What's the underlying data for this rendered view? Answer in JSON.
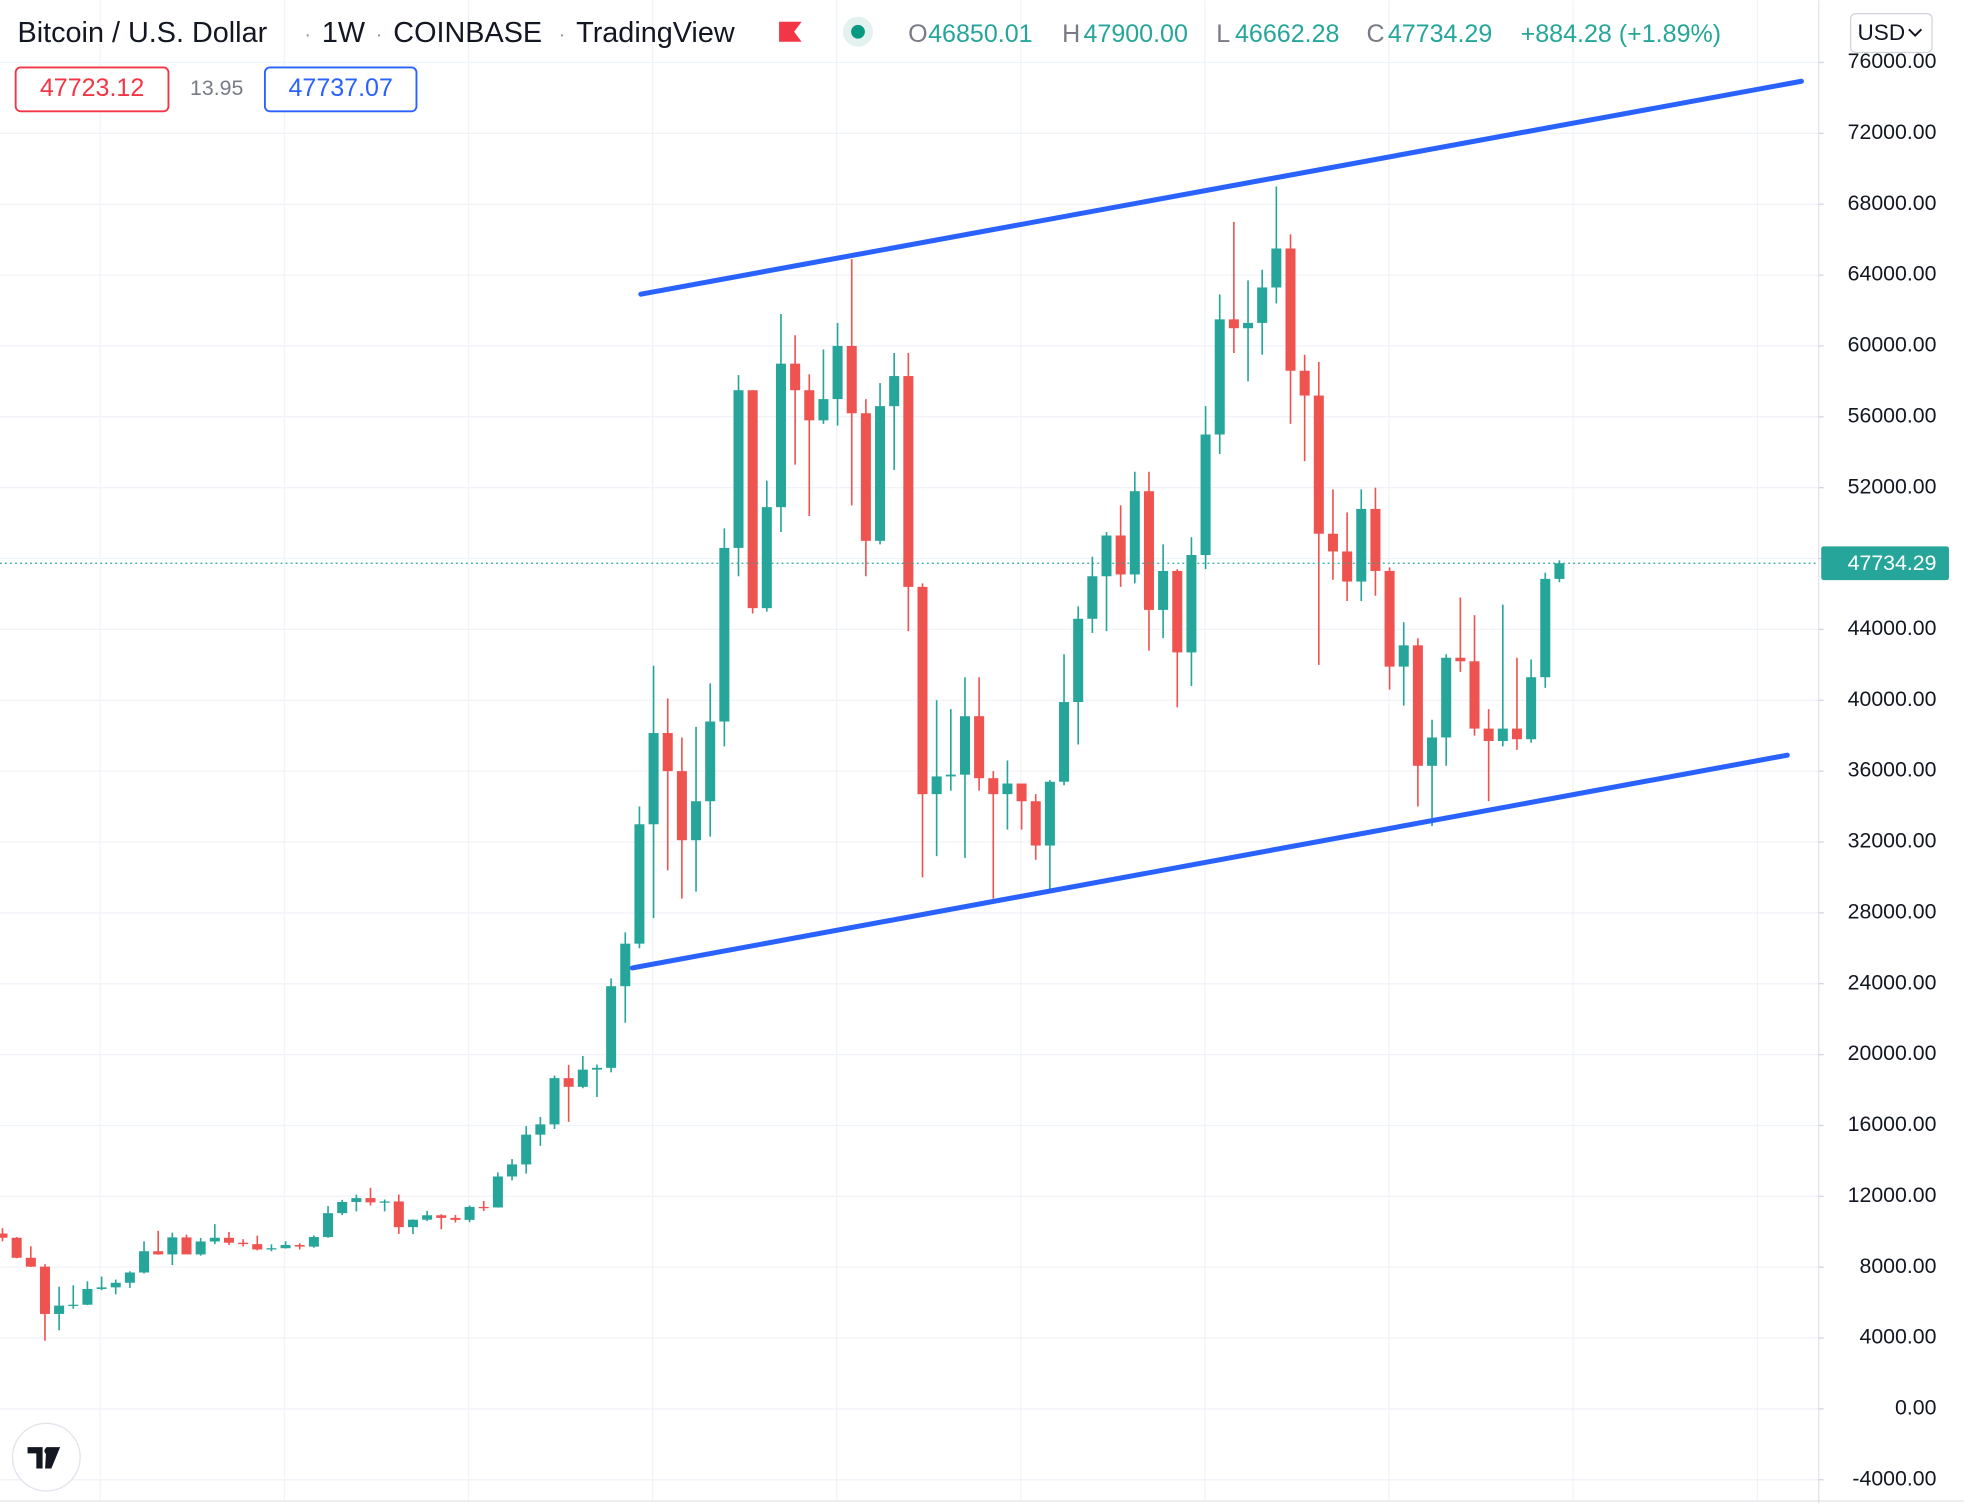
{
  "header": {
    "symbol": "Bitcoin / U.S. Dollar",
    "interval": "1W",
    "exchange": "COINBASE",
    "platform": "TradingView",
    "ohlc": [
      {
        "label": "O",
        "value": "46850.01"
      },
      {
        "label": "H",
        "value": "47900.00"
      },
      {
        "label": "L",
        "value": "46662.28"
      },
      {
        "label": "C",
        "value": "47734.29"
      }
    ],
    "change": "+884.28 (+1.89%)"
  },
  "order_panel": {
    "sell": "47723.12",
    "spread": "13.95",
    "buy": "47737.07"
  },
  "currency": "USD",
  "chart_data": {
    "type": "candlestick",
    "up_color": "#26a69a",
    "down_color": "#ef5350",
    "grid": true,
    "open": [
      9900,
      9660,
      8530,
      8030,
      5360,
      5830,
      5880,
      6770,
      6860,
      7120,
      7700,
      8900,
      8720,
      9680,
      8720,
      9450,
      9660,
      9380,
      9300,
      9000,
      9070,
      9250,
      9160,
      9700,
      11050,
      11680,
      11900,
      11660,
      11710,
      10260,
      10680,
      10930,
      10780,
      10670,
      11400,
      11370,
      13120,
      13800,
      15480,
      16060,
      18670,
      18180,
      19150,
      19250,
      23860,
      26260,
      33000,
      38150,
      36000,
      32100,
      34300,
      38800,
      48600,
      57500,
      45200,
      50900,
      59000,
      57500,
      55800,
      57000,
      60000,
      56200,
      49000,
      56600,
      58300,
      46400,
      34700,
      35700,
      35800,
      39100,
      35600,
      34700,
      35300,
      34300,
      31800,
      35400,
      39900,
      44600,
      47000,
      49300,
      47100,
      51800,
      45100,
      47300,
      42700,
      48200,
      55000,
      61500,
      61000,
      61300,
      63300,
      65500,
      58600,
      57200,
      49400,
      48400,
      46700,
      50800,
      47300,
      41900,
      43100,
      36300,
      37900,
      42400,
      42200,
      38400,
      37700,
      38400,
      37800,
      41300,
      46850.01
    ],
    "high": [
      10200,
      9700,
      9180,
      8170,
      6900,
      6980,
      7200,
      7470,
      7300,
      7770,
      9460,
      10050,
      9950,
      9840,
      9650,
      10430,
      9990,
      9580,
      9780,
      9290,
      9470,
      9350,
      9790,
      11450,
      11800,
      12090,
      12480,
      11820,
      12100,
      10700,
      11180,
      10990,
      10950,
      11480,
      11740,
      13350,
      14100,
      15960,
      16480,
      18820,
      19420,
      19920,
      19440,
      24300,
      26900,
      34000,
      41950,
      40100,
      37900,
      38500,
      40950,
      49700,
      58350,
      57500,
      52400,
      61800,
      60600,
      58400,
      59800,
      61300,
      64900,
      57000,
      57900,
      59600,
      59600,
      46600,
      40000,
      39500,
      41300,
      41300,
      36000,
      36600,
      35300,
      34700,
      35500,
      42600,
      45300,
      48100,
      49500,
      51000,
      52900,
      52900,
      48800,
      47400,
      49200,
      56600,
      62900,
      67000,
      63700,
      64300,
      69000,
      66300,
      59500,
      59100,
      51900,
      50600,
      51900,
      52000,
      47500,
      44400,
      43500,
      38900,
      42600,
      45800,
      44800,
      39500,
      45400,
      42400,
      42300,
      47200,
      47900
    ],
    "low": [
      9460,
      8500,
      8010,
      3850,
      4440,
      5650,
      5860,
      6700,
      6470,
      6830,
      7640,
      8700,
      8120,
      8800,
      8650,
      9300,
      9250,
      9170,
      8950,
      8900,
      9050,
      9000,
      9100,
      9660,
      10940,
      11150,
      11480,
      11150,
      9880,
      9870,
      10600,
      10140,
      10520,
      10540,
      11170,
      11360,
      12900,
      13280,
      14850,
      15800,
      16200,
      18100,
      17600,
      19000,
      21800,
      26000,
      27700,
      30400,
      28800,
      29200,
      32300,
      37400,
      47000,
      44900,
      45000,
      49500,
      53300,
      50400,
      55600,
      55500,
      51000,
      47000,
      48800,
      53000,
      43900,
      30000,
      31200,
      34900,
      31100,
      34900,
      28800,
      32700,
      32700,
      31000,
      29300,
      35200,
      37500,
      43800,
      43900,
      46400,
      46600,
      42800,
      43500,
      39600,
      40800,
      47400,
      53900,
      59600,
      58000,
      59500,
      62400,
      55600,
      53500,
      42000,
      46800,
      45600,
      45600,
      45900,
      40600,
      39700,
      34000,
      32900,
      36300,
      41600,
      38000,
      34300,
      37400,
      37200,
      37600,
      40700,
      46662.28
    ],
    "close": [
      9660,
      8530,
      8030,
      5360,
      5830,
      5880,
      6770,
      6860,
      7120,
      7700,
      8900,
      8720,
      9680,
      8720,
      9450,
      9660,
      9380,
      9300,
      9000,
      9070,
      9250,
      9160,
      9700,
      11050,
      11680,
      11900,
      11660,
      11710,
      10260,
      10680,
      10930,
      10780,
      10670,
      11400,
      11370,
      13120,
      13800,
      15480,
      16060,
      18670,
      18180,
      19150,
      19250,
      23860,
      26260,
      33000,
      38150,
      36000,
      32100,
      34300,
      38800,
      48600,
      57500,
      45200,
      50900,
      59000,
      57500,
      55800,
      57000,
      60000,
      56200,
      49000,
      56600,
      58300,
      46400,
      34700,
      35700,
      35800,
      39100,
      35600,
      34700,
      35300,
      34300,
      31800,
      35400,
      39900,
      44600,
      47000,
      49300,
      47100,
      51800,
      45100,
      47300,
      42700,
      48200,
      55000,
      61500,
      61000,
      61300,
      63300,
      65500,
      58600,
      57200,
      49400,
      48400,
      46700,
      50800,
      47300,
      41900,
      43100,
      36300,
      37900,
      42400,
      42200,
      38400,
      37700,
      38400,
      37800,
      41300,
      46850.01,
      47734.29
    ],
    "ylim": [
      -5200,
      79500
    ],
    "yticks": [
      {
        "value": -4000,
        "label": "-4000.00"
      },
      {
        "value": 0,
        "label": "0.00"
      },
      {
        "value": 4000,
        "label": "4000.00"
      },
      {
        "value": 8000,
        "label": "8000.00"
      },
      {
        "value": 12000,
        "label": "12000.00"
      },
      {
        "value": 16000,
        "label": "16000.00"
      },
      {
        "value": 20000,
        "label": "20000.00"
      },
      {
        "value": 24000,
        "label": "24000.00"
      },
      {
        "value": 28000,
        "label": "28000.00"
      },
      {
        "value": 32000,
        "label": "32000.00"
      },
      {
        "value": 36000,
        "label": "36000.00"
      },
      {
        "value": 40000,
        "label": "40000.00"
      },
      {
        "value": 44000,
        "label": "44000.00"
      },
      {
        "value": 48000,
        "label": "48000.00"
      },
      {
        "value": 52000,
        "label": "52000.00"
      },
      {
        "value": 56000,
        "label": "56000.00"
      },
      {
        "value": 60000,
        "label": "60000.00"
      },
      {
        "value": 64000,
        "label": "64000.00"
      },
      {
        "value": 68000,
        "label": "68000.00"
      },
      {
        "value": 72000,
        "label": "72000.00"
      },
      {
        "value": 76000,
        "label": "76000.00"
      }
    ],
    "last_price": {
      "value": 47734.29,
      "label": "47734.29",
      "color": "#26a69a"
    },
    "trend_lines": [
      {
        "start_index": 45.1,
        "start_value": 62920,
        "end_index": 127.1,
        "end_value": 74940,
        "color": "#2962ff"
      },
      {
        "start_index": 44.5,
        "start_value": 24890,
        "end_index": 126.1,
        "end_value": 36900,
        "color": "#2962ff"
      }
    ]
  }
}
